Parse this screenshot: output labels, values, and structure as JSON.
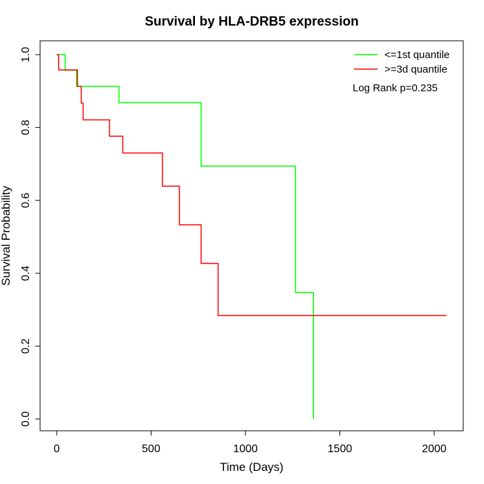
{
  "chart_data": {
    "type": "line",
    "title": "Survival by HLA-DRB5 expression",
    "xlabel": "Time (Days)",
    "ylabel": "Survival Probability",
    "xlim": [
      0,
      2070
    ],
    "ylim": [
      0,
      1
    ],
    "x_ticks": [
      0,
      500,
      1000,
      1500,
      2000
    ],
    "y_ticks": [
      0.0,
      0.2,
      0.4,
      0.6,
      0.8,
      1.0
    ],
    "x_tick_labels": [
      "0",
      "500",
      "1000",
      "1500",
      "2000"
    ],
    "y_tick_labels": [
      "0.0",
      "0.2",
      "0.4",
      "0.6",
      "0.8",
      "1.0"
    ],
    "grid": false,
    "legend_position": "top-right",
    "annotation": "Log Rank p=0.235",
    "series": [
      {
        "name": "<=1st quantile",
        "color": "#00ff00",
        "step": "post",
        "x": [
          0,
          45,
          45,
          105,
          105,
          330,
          330,
          765,
          765,
          1265,
          1265,
          1360,
          1360
        ],
        "y": [
          1.0,
          1.0,
          0.957,
          0.957,
          0.913,
          0.913,
          0.868,
          0.868,
          0.694,
          0.694,
          0.347,
          0.347,
          0.0
        ]
      },
      {
        "name": ">=3d quantile",
        "color": "#ff0000",
        "step": "post",
        "x": [
          0,
          10,
          10,
          110,
          110,
          130,
          130,
          140,
          140,
          280,
          280,
          350,
          350,
          560,
          560,
          650,
          650,
          765,
          765,
          855,
          855,
          2065
        ],
        "y": [
          1.0,
          1.0,
          0.958,
          0.958,
          0.913,
          0.913,
          0.867,
          0.867,
          0.821,
          0.821,
          0.776,
          0.776,
          0.73,
          0.73,
          0.639,
          0.639,
          0.533,
          0.533,
          0.427,
          0.427,
          0.284,
          0.284
        ]
      }
    ]
  }
}
